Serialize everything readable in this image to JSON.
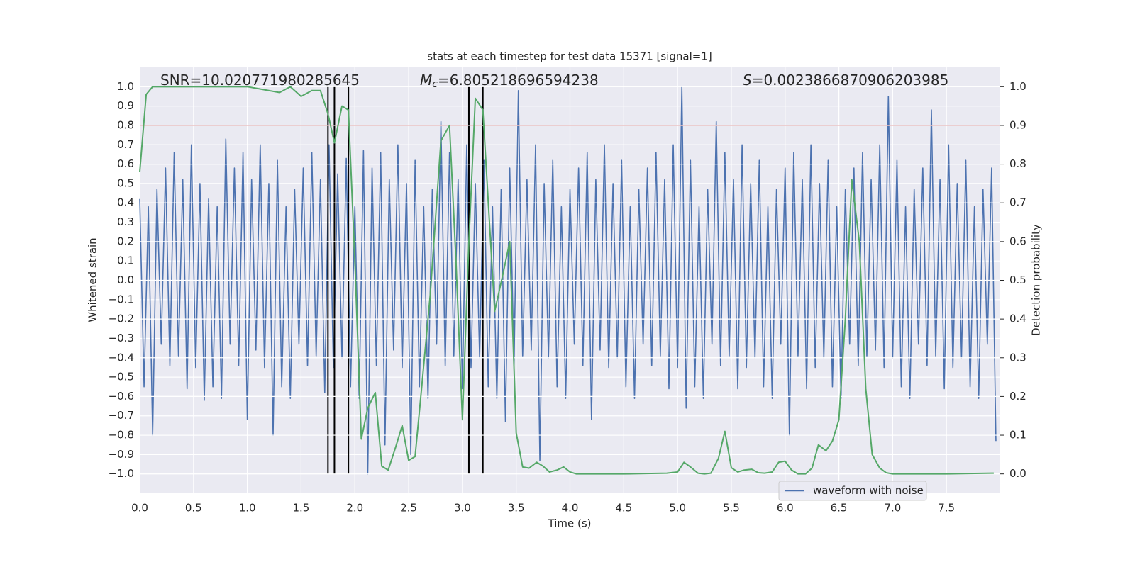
{
  "chart_data": {
    "type": "line",
    "title": "stats at each timestep for test data 15371 [signal=1]",
    "xlabel": "Time (s)",
    "ylabel": "Whitened strain",
    "y2label": "Detection probability",
    "xlim": [
      0,
      8.0
    ],
    "ylim": [
      -1.1,
      1.1
    ],
    "y2lim": [
      -0.05,
      1.05
    ],
    "grid": true,
    "legend": "lower right",
    "xticks": [
      {
        "value": 0,
        "label": "0.0"
      },
      {
        "value": 0.5,
        "label": "0.5"
      },
      {
        "value": 1,
        "label": "1.0"
      },
      {
        "value": 1.5,
        "label": "1.5"
      },
      {
        "value": 2,
        "label": "2.0"
      },
      {
        "value": 2.5,
        "label": "2.5"
      },
      {
        "value": 3,
        "label": "3.0"
      },
      {
        "value": 3.5,
        "label": "3.5"
      },
      {
        "value": 4,
        "label": "4.0"
      },
      {
        "value": 4.5,
        "label": "4.5"
      },
      {
        "value": 5,
        "label": "5.0"
      },
      {
        "value": 5.5,
        "label": "5.5"
      },
      {
        "value": 6,
        "label": "6.0"
      },
      {
        "value": 6.5,
        "label": "6.5"
      },
      {
        "value": 7,
        "label": "7.0"
      },
      {
        "value": 7.5,
        "label": "7.5"
      }
    ],
    "yticks": [
      {
        "value": -1.0,
        "label": "−1.0"
      },
      {
        "value": -0.9,
        "label": "−0.9"
      },
      {
        "value": -0.8,
        "label": "−0.8"
      },
      {
        "value": -0.7,
        "label": "−0.7"
      },
      {
        "value": -0.6,
        "label": "−0.6"
      },
      {
        "value": -0.5,
        "label": "−0.5"
      },
      {
        "value": -0.4,
        "label": "−0.4"
      },
      {
        "value": -0.3,
        "label": "−0.3"
      },
      {
        "value": -0.2,
        "label": "−0.2"
      },
      {
        "value": -0.1,
        "label": "−0.1"
      },
      {
        "value": 0,
        "label": "0.0"
      },
      {
        "value": 0.1,
        "label": "0.1"
      },
      {
        "value": 0.2,
        "label": "0.2"
      },
      {
        "value": 0.3,
        "label": "0.3"
      },
      {
        "value": 0.4,
        "label": "0.4"
      },
      {
        "value": 0.5,
        "label": "0.5"
      },
      {
        "value": 0.6,
        "label": "0.6"
      },
      {
        "value": 0.7,
        "label": "0.7"
      },
      {
        "value": 0.8,
        "label": "0.8"
      },
      {
        "value": 0.9,
        "label": "0.9"
      },
      {
        "value": 1.0,
        "label": "1.0"
      }
    ],
    "y2ticks": [
      {
        "value": 0,
        "label": "0.0"
      },
      {
        "value": 0.1,
        "label": "0.1"
      },
      {
        "value": 0.2,
        "label": "0.2"
      },
      {
        "value": 0.3,
        "label": "0.3"
      },
      {
        "value": 0.4,
        "label": "0.4"
      },
      {
        "value": 0.5,
        "label": "0.5"
      },
      {
        "value": 0.6,
        "label": "0.6"
      },
      {
        "value": 0.7,
        "label": "0.7"
      },
      {
        "value": 0.8,
        "label": "0.8"
      },
      {
        "value": 0.9,
        "label": "0.9"
      },
      {
        "value": 1.0,
        "label": "1.0"
      }
    ],
    "series": [
      {
        "name": "waveform with noise",
        "color": "#4c72b0",
        "x": [
          0,
          0.04,
          0.08,
          0.12,
          0.16,
          0.2,
          0.24,
          0.28,
          0.32,
          0.36,
          0.4,
          0.44,
          0.48,
          0.52,
          0.56,
          0.6,
          0.64,
          0.68,
          0.72,
          0.76,
          0.8,
          0.84,
          0.88,
          0.92,
          0.96,
          1,
          1.04,
          1.08,
          1.12,
          1.16,
          1.2,
          1.24,
          1.28,
          1.32,
          1.36,
          1.4,
          1.44,
          1.48,
          1.52,
          1.56,
          1.6,
          1.64,
          1.68,
          1.72,
          1.76,
          1.8,
          1.84,
          1.88,
          1.92,
          1.96,
          2,
          2.04,
          2.08,
          2.12,
          2.16,
          2.2,
          2.24,
          2.28,
          2.32,
          2.36,
          2.4,
          2.44,
          2.48,
          2.52,
          2.56,
          2.6,
          2.64,
          2.68,
          2.72,
          2.76,
          2.8,
          2.84,
          2.88,
          2.92,
          2.96,
          3,
          3.04,
          3.08,
          3.12,
          3.16,
          3.2,
          3.24,
          3.28,
          3.32,
          3.36,
          3.4,
          3.44,
          3.48,
          3.52,
          3.56,
          3.6,
          3.64,
          3.68,
          3.72,
          3.76,
          3.8,
          3.84,
          3.88,
          3.92,
          3.96,
          4,
          4.04,
          4.08,
          4.12,
          4.16,
          4.2,
          4.24,
          4.28,
          4.32,
          4.36,
          4.4,
          4.44,
          4.48,
          4.52,
          4.56,
          4.6,
          4.64,
          4.68,
          4.72,
          4.76,
          4.8,
          4.84,
          4.88,
          4.92,
          4.96,
          5,
          5.04,
          5.08,
          5.12,
          5.16,
          5.2,
          5.24,
          5.28,
          5.32,
          5.36,
          5.4,
          5.44,
          5.48,
          5.52,
          5.56,
          5.6,
          5.64,
          5.68,
          5.72,
          5.76,
          5.8,
          5.84,
          5.88,
          5.92,
          5.96,
          6,
          6.04,
          6.08,
          6.12,
          6.16,
          6.2,
          6.24,
          6.28,
          6.32,
          6.36,
          6.4,
          6.44,
          6.48,
          6.52,
          6.56,
          6.6,
          6.64,
          6.68,
          6.72,
          6.76,
          6.8,
          6.84,
          6.88,
          6.92,
          6.96,
          7,
          7.04,
          7.08,
          7.12,
          7.16,
          7.2,
          7.24,
          7.28,
          7.32,
          7.36,
          7.4,
          7.44,
          7.48,
          7.52,
          7.56,
          7.6,
          7.64,
          7.68,
          7.72,
          7.76,
          7.8,
          7.84,
          7.88,
          7.92,
          7.96
        ],
        "values": [
          0.42,
          -0.55,
          0.38,
          -0.8,
          0.47,
          -0.33,
          0.58,
          -0.44,
          0.66,
          -0.39,
          0.52,
          -0.56,
          0.7,
          -0.45,
          0.5,
          -0.62,
          0.42,
          -0.55,
          0.38,
          -0.61,
          0.73,
          -0.33,
          0.58,
          -0.44,
          0.66,
          -0.72,
          0.52,
          -0.36,
          0.7,
          -0.45,
          0.5,
          -0.8,
          0.62,
          -0.55,
          0.38,
          -0.61,
          0.47,
          -0.33,
          0.58,
          -0.44,
          0.66,
          -0.39,
          0.52,
          -0.58,
          0.7,
          -0.45,
          0.55,
          -0.4,
          0.63,
          -0.55,
          0.38,
          -0.61,
          0.67,
          -1.0,
          0.58,
          -0.44,
          0.66,
          -0.85,
          0.52,
          -0.36,
          0.7,
          -0.45,
          0.5,
          -0.9,
          0.62,
          -0.55,
          0.38,
          -0.61,
          0.47,
          -0.33,
          0.82,
          -0.44,
          0.66,
          -0.39,
          0.52,
          -0.56,
          0.7,
          -0.45,
          0.5,
          -0.4,
          0.62,
          -0.55,
          0.38,
          -0.61,
          0.47,
          -0.73,
          0.58,
          -0.44,
          0.98,
          -0.39,
          0.52,
          -0.36,
          0.7,
          -0.93,
          0.5,
          -0.4,
          0.62,
          -0.55,
          0.38,
          -0.61,
          0.47,
          -0.33,
          0.58,
          -0.44,
          0.66,
          -0.72,
          0.52,
          -0.36,
          0.7,
          -0.45,
          0.5,
          -0.4,
          0.62,
          -0.55,
          0.38,
          -0.61,
          0.47,
          -0.33,
          0.58,
          -0.44,
          0.66,
          -0.39,
          0.52,
          -0.56,
          0.7,
          -0.45,
          1.0,
          -0.66,
          0.62,
          -0.55,
          0.38,
          -0.61,
          0.47,
          -0.33,
          0.82,
          -0.44,
          0.66,
          -0.39,
          0.52,
          -0.56,
          0.7,
          -0.45,
          0.5,
          -0.4,
          0.62,
          -0.55,
          0.38,
          -0.61,
          0.47,
          -0.33,
          0.58,
          -0.8,
          0.66,
          -0.39,
          0.52,
          -0.56,
          0.7,
          -0.45,
          0.5,
          -0.4,
          0.62,
          -0.55,
          0.38,
          -0.61,
          0.47,
          -0.33,
          0.58,
          -0.44,
          0.66,
          -0.39,
          0.52,
          -0.36,
          0.7,
          -0.45,
          0.95,
          -0.4,
          0.62,
          -0.55,
          0.38,
          -0.61,
          0.47,
          -0.33,
          0.58,
          -0.44,
          0.88,
          -0.39,
          0.52,
          -0.56,
          0.7,
          -0.45,
          0.5,
          -0.4,
          0.62,
          -0.55,
          0.38,
          -0.61,
          0.47,
          -0.33,
          0.58,
          -0.83
        ]
      },
      {
        "color": "#55a868",
        "axis": "y2",
        "x": [
          0,
          0.06,
          0.12,
          0.5,
          1.0,
          1.2,
          1.3,
          1.4,
          1.5,
          1.6,
          1.68,
          1.75,
          1.81,
          1.88,
          1.94,
          2.0,
          2.06,
          2.12,
          2.19,
          2.25,
          2.31,
          2.38,
          2.44,
          2.5,
          2.56,
          2.62,
          2.7,
          2.8,
          2.88,
          2.94,
          3.0,
          3.06,
          3.12,
          3.19,
          3.3,
          3.38,
          3.44,
          3.5,
          3.56,
          3.62,
          3.69,
          3.75,
          3.81,
          3.88,
          3.94,
          4.0,
          4.06,
          4.5,
          4.9,
          5.0,
          5.06,
          5.12,
          5.19,
          5.25,
          5.31,
          5.38,
          5.44,
          5.5,
          5.56,
          5.62,
          5.69,
          5.75,
          5.81,
          5.88,
          5.94,
          6.0,
          6.06,
          6.12,
          6.19,
          6.25,
          6.31,
          6.38,
          6.44,
          6.5,
          6.56,
          6.62,
          6.69,
          6.75,
          6.81,
          6.88,
          6.94,
          7.0,
          7.5,
          7.94
        ],
        "values": [
          0.78,
          0.98,
          1.0,
          1.0,
          1.0,
          0.99,
          0.985,
          1.0,
          0.975,
          0.99,
          0.99,
          0.93,
          0.855,
          0.95,
          0.94,
          0.55,
          0.09,
          0.17,
          0.21,
          0.02,
          0.01,
          0.07,
          0.125,
          0.035,
          0.045,
          0.22,
          0.46,
          0.86,
          0.9,
          0.55,
          0.14,
          0.6,
          0.97,
          0.94,
          0.42,
          0.52,
          0.6,
          0.106,
          0.018,
          0.015,
          0.03,
          0.02,
          0.005,
          0.01,
          0.018,
          0.005,
          0.0,
          0.0,
          0.002,
          0.005,
          0.03,
          0.018,
          0.002,
          0.0,
          0.002,
          0.04,
          0.11,
          0.016,
          0.005,
          0.01,
          0.012,
          0.003,
          0.002,
          0.005,
          0.03,
          0.033,
          0.01,
          0.0,
          0.0,
          0.015,
          0.075,
          0.06,
          0.085,
          0.14,
          0.4,
          0.76,
          0.6,
          0.22,
          0.05,
          0.015,
          0.003,
          0.0,
          0.0,
          0.002
        ]
      }
    ],
    "hlines": [
      {
        "value": 0.8,
        "color": "#c44e52"
      }
    ],
    "vlines": {
      "x": [
        1.75,
        1.81,
        1.94,
        3.06,
        3.19
      ],
      "ymin": -1.0,
      "ymax": 1.0,
      "color": "#000000"
    },
    "annotations": [
      {
        "text": "SNR=10.020771980285645"
      },
      {
        "symbol": "M",
        "subscript": "c",
        "text": "=6.805218696594238"
      },
      {
        "symbol": "S",
        "text": "=0.0023866870906203985"
      }
    ]
  }
}
